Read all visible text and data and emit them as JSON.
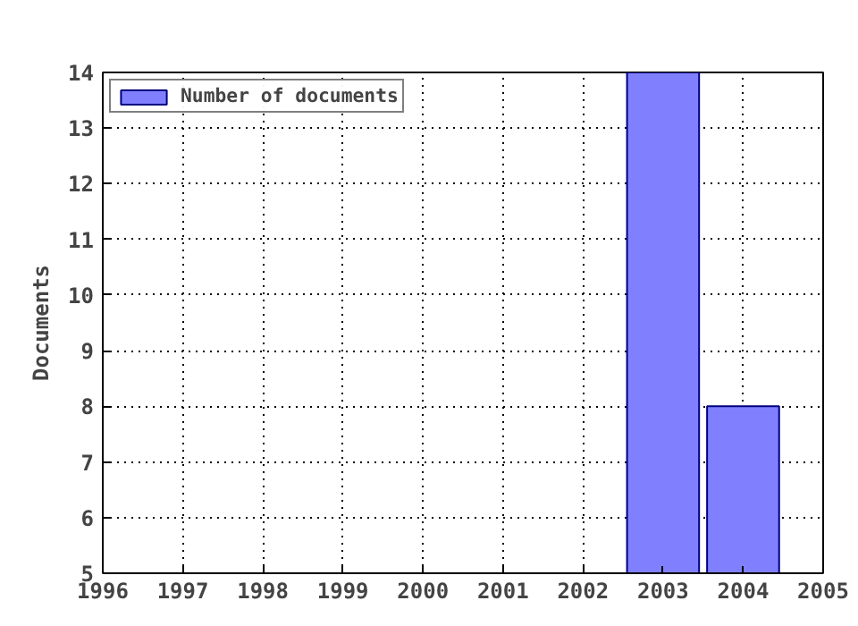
{
  "chart_data": {
    "type": "bar",
    "ylabel": "Documents",
    "x": [
      2003,
      2004
    ],
    "series": [
      {
        "name": "Number of documents",
        "color": "#8080ff",
        "values": [
          14,
          8
        ]
      }
    ],
    "xlim": [
      1996,
      2005
    ],
    "xticks": [
      1996,
      1997,
      1998,
      1999,
      2000,
      2001,
      2002,
      2003,
      2004,
      2005
    ],
    "ylim": [
      5,
      14
    ],
    "yticks": [
      5,
      6,
      7,
      8,
      9,
      10,
      11,
      12,
      13,
      14
    ],
    "grid": true,
    "legend": "top left"
  }
}
